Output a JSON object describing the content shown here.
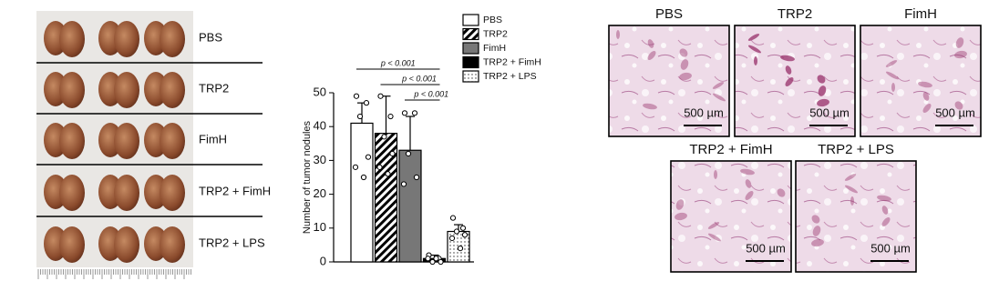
{
  "lung_photos": {
    "rows": [
      {
        "label": "PBS"
      },
      {
        "label": "TRP2"
      },
      {
        "label": "FimH"
      },
      {
        "label": "TRP2 + FimH"
      },
      {
        "label": "TRP2 + LPS"
      }
    ]
  },
  "chart_data": {
    "type": "bar",
    "ylabel": "Number of tumor nodules",
    "ylim": [
      0,
      50
    ],
    "yticks": [
      0,
      10,
      20,
      30,
      40,
      50
    ],
    "series": [
      {
        "name": "PBS",
        "color": "#ffffff",
        "pattern": "solid",
        "values": [
          41
        ],
        "errors": [
          6
        ],
        "points": [
          49,
          47,
          43,
          31,
          28,
          25
        ]
      },
      {
        "name": "TRP2",
        "color": "#ffffff",
        "pattern": "hatch",
        "values": [
          38
        ],
        "errors": [
          11
        ],
        "points": [
          49,
          43,
          37,
          32,
          28,
          26
        ]
      },
      {
        "name": "FimH",
        "color": "#777777",
        "pattern": "solid",
        "values": [
          33
        ],
        "errors": [
          10
        ],
        "points": [
          44,
          44,
          32,
          25,
          23
        ]
      },
      {
        "name": "TRP2 + FimH",
        "color": "#000000",
        "pattern": "solid",
        "values": [
          1
        ],
        "errors": [
          1
        ],
        "points": [
          2,
          1,
          0,
          0,
          1,
          1
        ]
      },
      {
        "name": "TRP2 + LPS",
        "color": "#ffffff",
        "pattern": "dots",
        "values": [
          9
        ],
        "errors": [
          2
        ],
        "points": [
          13,
          10,
          9,
          8,
          7,
          4
        ]
      }
    ],
    "annotations": [
      "p < 0.001",
      "p < 0.001",
      "p < 0.001"
    ]
  },
  "histology": {
    "panels": [
      {
        "title": "PBS",
        "scale_bar": "500 µm"
      },
      {
        "title": "TRP2",
        "scale_bar": "500 µm"
      },
      {
        "title": "FimH",
        "scale_bar": "500 µm"
      },
      {
        "title": "TRP2 + FimH",
        "scale_bar": "500 µm"
      },
      {
        "title": "TRP2 + LPS",
        "scale_bar": "500 µm"
      }
    ]
  }
}
